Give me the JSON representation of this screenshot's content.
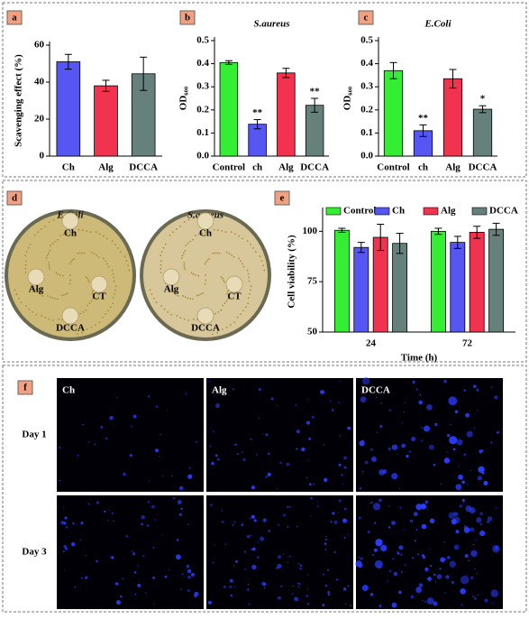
{
  "chart_data": [
    {
      "panel": "a",
      "type": "bar",
      "ylabel": "Scavenging effect (%)",
      "categories": [
        "Ch",
        "Alg",
        "DCCA"
      ],
      "values": [
        51,
        38,
        44.5
      ],
      "errors": [
        4,
        3,
        9
      ],
      "colors": [
        "#5656f2",
        "#f2334f",
        "#66807c"
      ],
      "ylim": [
        0,
        60
      ],
      "yticks": [
        0,
        20,
        40,
        60
      ]
    },
    {
      "panel": "b",
      "type": "bar",
      "title": "S.aureus",
      "ylabel": "OD₆₀₀",
      "categories": [
        "Control",
        "ch",
        "Alg",
        "DCCA"
      ],
      "values": [
        0.405,
        0.138,
        0.36,
        0.22
      ],
      "errors": [
        0.008,
        0.02,
        0.02,
        0.03
      ],
      "colors": [
        "#33ee33",
        "#5656f2",
        "#f2334f",
        "#66807c"
      ],
      "ylim": [
        0,
        0.5
      ],
      "yticks": [
        {
          "value": 0,
          "label": "0.0"
        },
        0.1,
        0.2,
        0.3,
        0.4,
        0.5
      ],
      "annotations": [
        {
          "x": "ch",
          "text": "**"
        },
        {
          "x": "DCCA",
          "text": "**"
        }
      ]
    },
    {
      "panel": "c",
      "type": "bar",
      "title": "E.Coli",
      "ylabel": "OD₆₀₀",
      "categories": [
        "Control",
        "ch",
        "Alg",
        "DCCA"
      ],
      "values": [
        0.37,
        0.11,
        0.335,
        0.203
      ],
      "errors": [
        0.035,
        0.025,
        0.04,
        0.015
      ],
      "colors": [
        "#33ee33",
        "#5656f2",
        "#f2334f",
        "#66807c"
      ],
      "ylim": [
        0,
        0.5
      ],
      "yticks": [
        {
          "value": 0,
          "label": "0.0"
        },
        0.1,
        0.2,
        0.3,
        0.4,
        0.5
      ],
      "annotations": [
        {
          "x": "ch",
          "text": "**"
        },
        {
          "x": "DCCA",
          "text": "*"
        }
      ]
    },
    {
      "panel": "e",
      "type": "grouped-bar",
      "ylabel": "Cell viability (%)",
      "xlabel": "Time (h)",
      "categories": [
        "24",
        "72"
      ],
      "series": [
        {
          "name": "Control",
          "color": "#33ee33",
          "values": [
            100.5,
            100
          ],
          "errors": [
            1,
            1.5
          ]
        },
        {
          "name": "Ch",
          "color": "#5656f2",
          "values": [
            92,
            94.5
          ],
          "errors": [
            2.5,
            3
          ]
        },
        {
          "name": "Alg",
          "color": "#f2334f",
          "values": [
            97,
            99.5
          ],
          "errors": [
            6.5,
            3
          ]
        },
        {
          "name": "DCCA",
          "color": "#66807c",
          "values": [
            94,
            101
          ],
          "errors": [
            5,
            3
          ]
        }
      ],
      "ylim": [
        50,
        110
      ],
      "yticks": [
        50,
        75,
        100
      ]
    }
  ],
  "plates": {
    "panel": "d",
    "dishes": [
      {
        "title": "E.Coli",
        "labels": [
          "Ch",
          "Alg",
          "CT",
          "DCCA"
        ]
      },
      {
        "title": "S.aureus",
        "labels": [
          "Ch",
          "Alg",
          "CT",
          "DCCA"
        ]
      }
    ]
  },
  "microscopy": {
    "panel": "f",
    "columns": [
      "Ch",
      "Alg",
      "DCCA"
    ],
    "rows": [
      "Day 1",
      "Day 3"
    ]
  }
}
